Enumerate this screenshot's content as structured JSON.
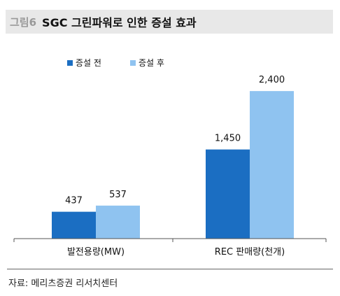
{
  "figure": {
    "number": "그림6",
    "title": "SGC 그린파워로 인한 증설 효과",
    "source": "자료: 메리츠증권 리서치센터"
  },
  "colors": {
    "before": "#1b6ec2",
    "after": "#8fc3f0",
    "axis": "#555555",
    "title_bg": "#e8e8e8"
  },
  "chart_data": {
    "type": "bar",
    "title": "SGC 그린파워로 인한 증설 효과",
    "categories": [
      "발전용량(MW)",
      "REC 판매량(천개)"
    ],
    "series": [
      {
        "name": "증설 전",
        "values": [
          437,
          1450
        ],
        "labels": [
          "437",
          "1,450"
        ]
      },
      {
        "name": "증설 후",
        "values": [
          537,
          2400
        ],
        "labels": [
          "537",
          "2,400"
        ]
      }
    ],
    "xlabel": "",
    "ylabel": "",
    "ylim": [
      0,
      2800
    ],
    "grid": false,
    "legend_position": "top-left"
  }
}
